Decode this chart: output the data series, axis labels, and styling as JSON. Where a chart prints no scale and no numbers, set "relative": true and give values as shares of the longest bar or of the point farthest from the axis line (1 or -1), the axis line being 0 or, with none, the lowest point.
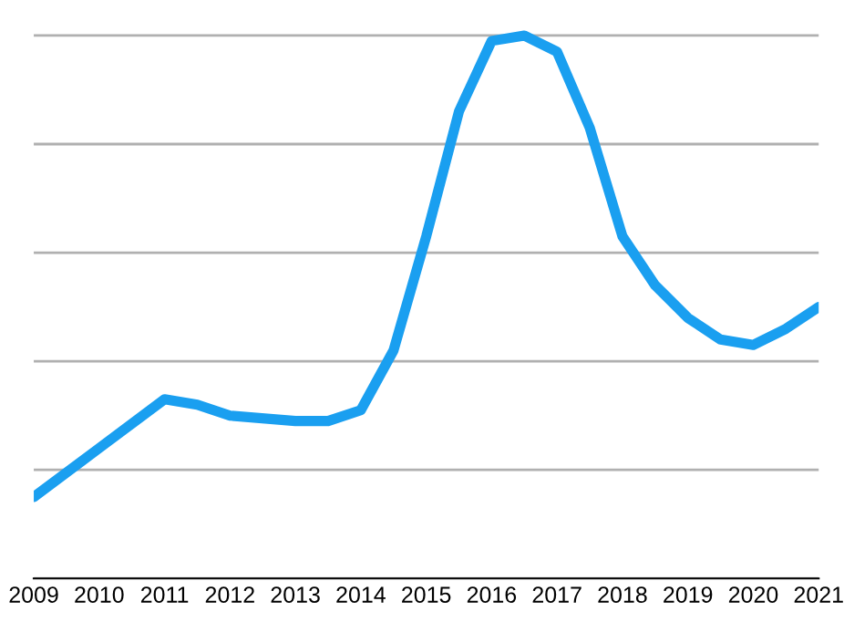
{
  "chart_data": {
    "type": "line",
    "relative": true,
    "grid": "y",
    "marker": "none",
    "line_style": "solid",
    "xlim": [
      2009,
      2021
    ],
    "xticks": [
      2009,
      2010,
      2011,
      2012,
      2013,
      2014,
      2015,
      2016,
      2017,
      2018,
      2019,
      2020,
      2021
    ],
    "x": [
      2009,
      2010,
      2011,
      2011.5,
      2012,
      2013,
      2013.5,
      2014,
      2014.5,
      2015,
      2015.5,
      2016,
      2016.5,
      2017,
      2017.5,
      2018,
      2018.5,
      2019,
      2019.5,
      2020,
      2020.5,
      2021
    ],
    "series": [
      {
        "color": "#1a9ff0",
        "values": [
          0.15,
          0.24,
          0.33,
          0.32,
          0.3,
          0.29,
          0.29,
          0.31,
          0.42,
          0.63,
          0.86,
          0.99,
          1.0,
          0.97,
          0.83,
          0.63,
          0.54,
          0.48,
          0.44,
          0.43,
          0.46,
          0.5
        ]
      }
    ]
  }
}
